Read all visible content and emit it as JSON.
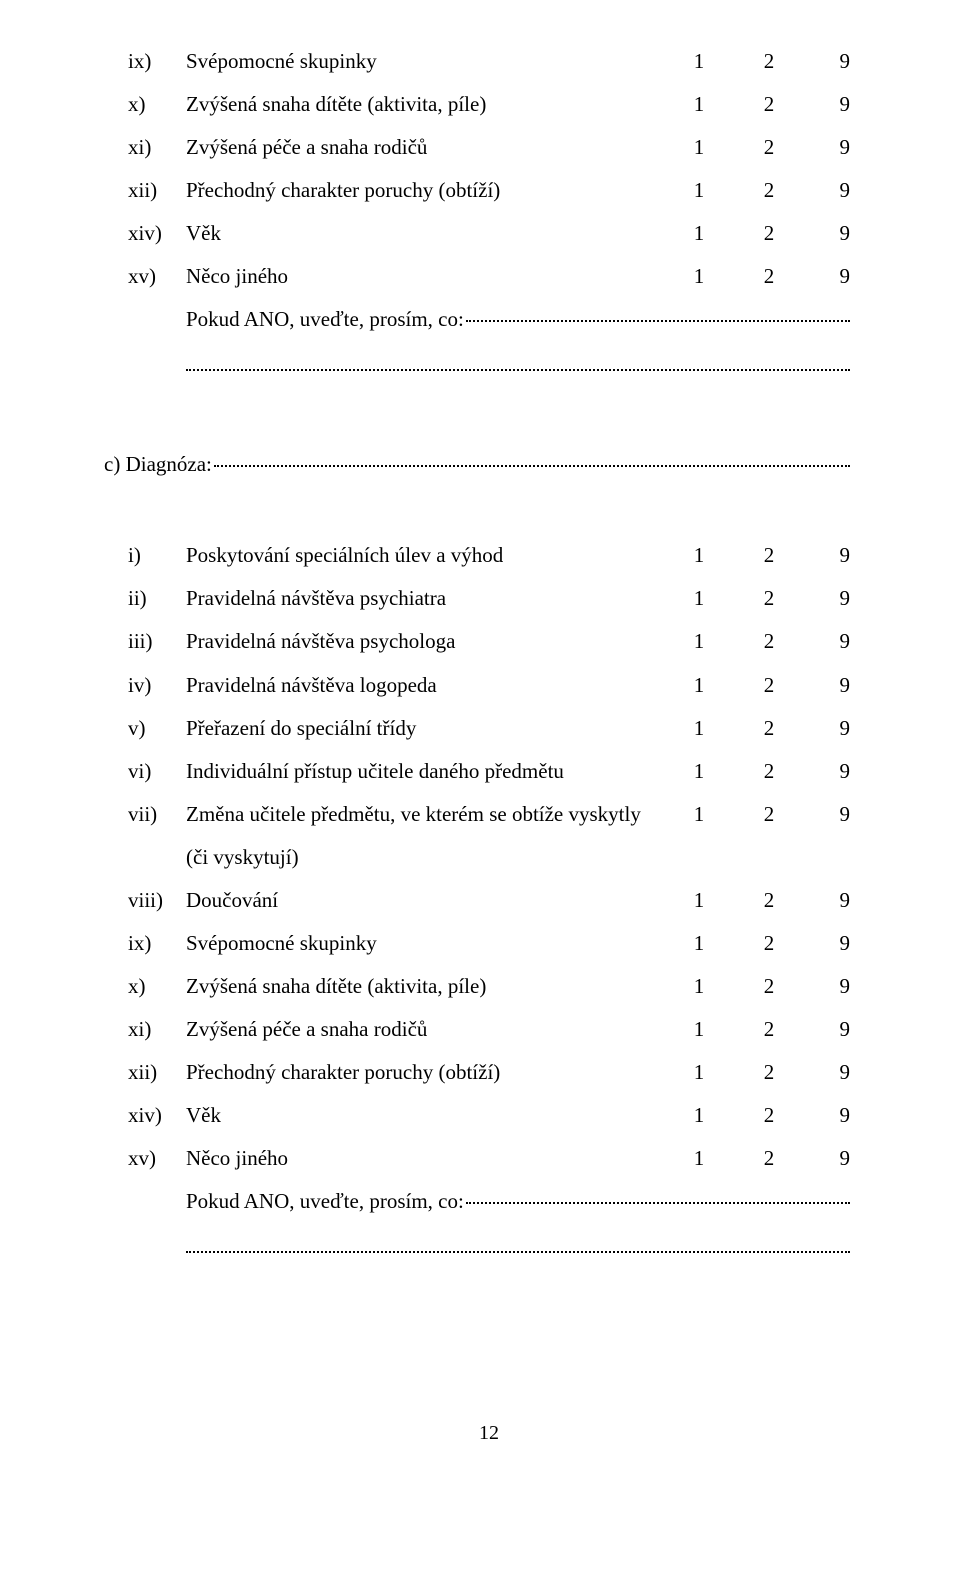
{
  "cols": {
    "c1": "1",
    "c2": "2",
    "c3": "9"
  },
  "top_block": {
    "rows": [
      {
        "marker": "ix)",
        "label": "Svépomocné skupinky"
      },
      {
        "marker": "x)",
        "label": "Zvýšená snaha dítěte (aktivita, píle)"
      },
      {
        "marker": "xi)",
        "label": "Zvýšená péče a snaha rodičů"
      },
      {
        "marker": "xii)",
        "label": "Přechodný charakter poruchy (obtíží)"
      },
      {
        "marker": "xiv)",
        "label": "Věk"
      },
      {
        "marker": "xv)",
        "label": "Něco jiného"
      }
    ],
    "leader": "Pokud ANO, uveďte, prosím, co:"
  },
  "diag_label": "c) Diagnóza:",
  "bottom_block": {
    "rows": [
      {
        "marker": "i)",
        "label": "Poskytování speciálních úlev a výhod"
      },
      {
        "marker": "ii)",
        "label": "Pravidelná návštěva psychiatra"
      },
      {
        "marker": "iii)",
        "label": "Pravidelná návštěva psychologa"
      },
      {
        "marker": "iv)",
        "label": "Pravidelná návštěva logopeda"
      },
      {
        "marker": "v)",
        "label": "Přeřazení do speciální třídy"
      },
      {
        "marker": "vi)",
        "label": "Individuální přístup učitele daného předmětu"
      },
      {
        "marker": "vii)",
        "label": "Změna učitele předmětu, ve kterém se obtíže vyskytly",
        "sub": "(či vyskytují)"
      },
      {
        "marker": "viii)",
        "label": "Doučování"
      },
      {
        "marker": "ix)",
        "label": "Svépomocné skupinky"
      },
      {
        "marker": "x)",
        "label": "Zvýšená snaha dítěte (aktivita, píle)"
      },
      {
        "marker": "xi)",
        "label": "Zvýšená péče a snaha rodičů"
      },
      {
        "marker": "xii)",
        "label": "Přechodný charakter poruchy (obtíží)"
      },
      {
        "marker": "xiv)",
        "label": "Věk"
      },
      {
        "marker": "xv)",
        "label": "Něco jiného"
      }
    ],
    "leader": "Pokud ANO, uveďte, prosím, co:"
  },
  "page_number": "12"
}
